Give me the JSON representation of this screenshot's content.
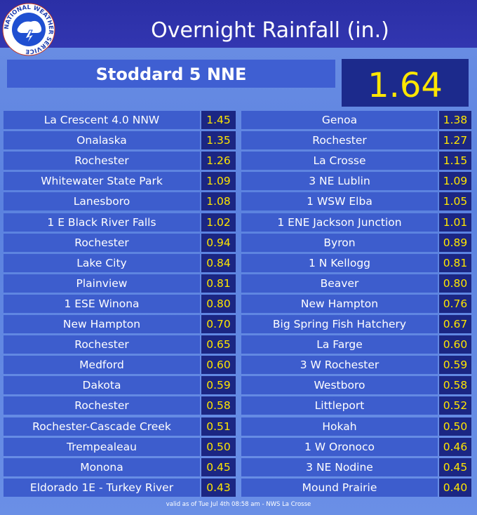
{
  "header": {
    "title": "Overnight Rainfall (in.)",
    "logo_text": "NATIONAL WEATHER SERVICE"
  },
  "top": {
    "name": "Stoddard 5 NNE",
    "value": "1.64"
  },
  "table": {
    "rows": [
      [
        "La Crescent 4.0 NNW",
        "1.45",
        "Genoa",
        "1.38"
      ],
      [
        "Onalaska",
        "1.35",
        "Rochester",
        "1.27"
      ],
      [
        "Rochester",
        "1.26",
        "La Crosse",
        "1.15"
      ],
      [
        "Whitewater State Park",
        "1.09",
        "3 NE Lublin",
        "1.09"
      ],
      [
        "Lanesboro",
        "1.08",
        "1 WSW Elba",
        "1.05"
      ],
      [
        "1 E Black River Falls",
        "1.02",
        "1 ENE Jackson Junction",
        "1.01"
      ],
      [
        "Rochester",
        "0.94",
        "Byron",
        "0.89"
      ],
      [
        "Lake City",
        "0.84",
        "1 N Kellogg",
        "0.81"
      ],
      [
        "Plainview",
        "0.81",
        "Beaver",
        "0.80"
      ],
      [
        "1 ESE Winona",
        "0.80",
        "New Hampton",
        "0.76"
      ],
      [
        "New Hampton",
        "0.70",
        "Big Spring Fish Hatchery",
        "0.67"
      ],
      [
        "Rochester",
        "0.65",
        "La Farge",
        "0.60"
      ],
      [
        "Medford",
        "0.60",
        "3 W Rochester",
        "0.59"
      ],
      [
        "Dakota",
        "0.59",
        "Westboro",
        "0.58"
      ],
      [
        "Rochester",
        "0.58",
        "Littleport",
        "0.52"
      ],
      [
        "Rochester-Cascade Creek",
        "0.51",
        "Hokah",
        "0.50"
      ],
      [
        "Trempealeau",
        "0.50",
        "1 W Oronoco",
        "0.46"
      ],
      [
        "Monona",
        "0.45",
        "3 NE Nodine",
        "0.45"
      ],
      [
        "Eldorado 1E - Turkey River",
        "0.43",
        "Mound Prairie",
        "0.40"
      ]
    ]
  },
  "footer": "valid as of Tue Jul 4th 08:58 am - NWS La Crosse"
}
